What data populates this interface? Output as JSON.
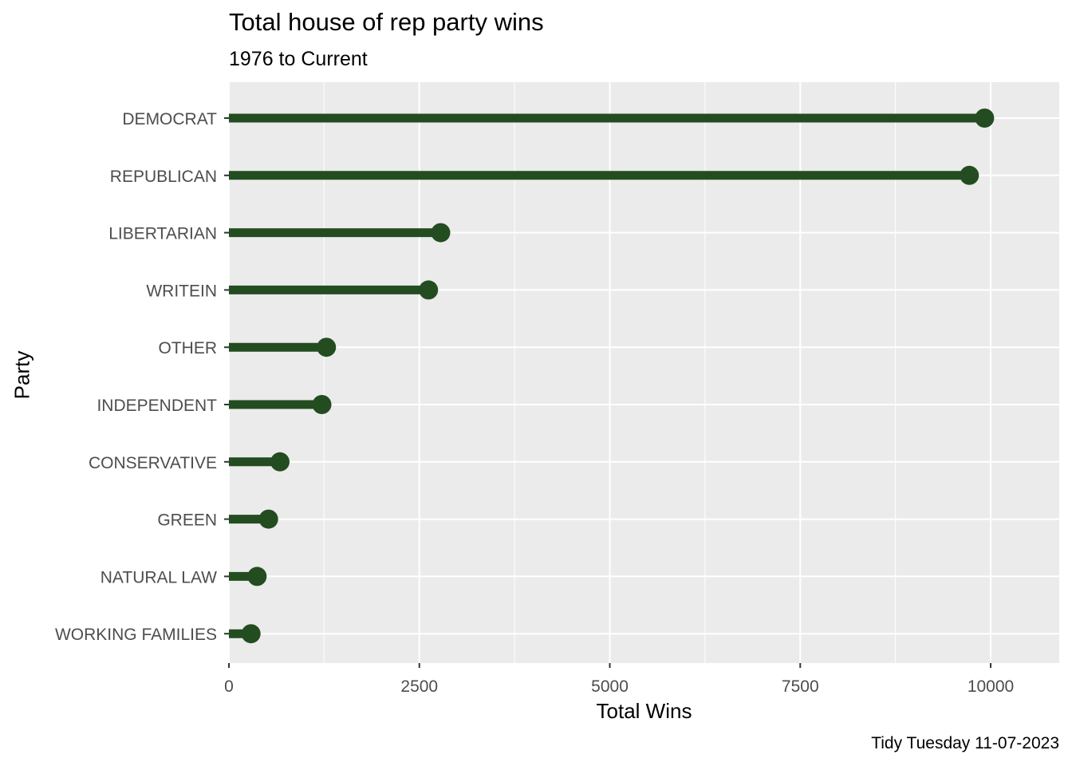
{
  "chart_data": {
    "type": "lollipop",
    "title": "Total house of rep party wins",
    "subtitle": "1976 to Current",
    "xlabel": "Total Wins",
    "ylabel": "Party",
    "caption": "Tidy Tuesday 11-07-2023",
    "xlim": [
      0,
      10900
    ],
    "x_ticks": [
      0,
      2500,
      5000,
      7500,
      10000
    ],
    "x_tick_labels": [
      "0",
      "2500",
      "5000",
      "7500",
      "10000"
    ],
    "categories": [
      "DEMOCRAT",
      "REPUBLICAN",
      "LIBERTARIAN",
      "WRITEIN",
      "OTHER",
      "INDEPENDENT",
      "CONSERVATIVE",
      "GREEN",
      "NATURAL LAW",
      "WORKING FAMILIES"
    ],
    "values": [
      9920,
      9720,
      2780,
      2620,
      1280,
      1220,
      670,
      520,
      370,
      290
    ],
    "color": "#234d20",
    "panel_background": "#ebebeb",
    "grid": true
  }
}
